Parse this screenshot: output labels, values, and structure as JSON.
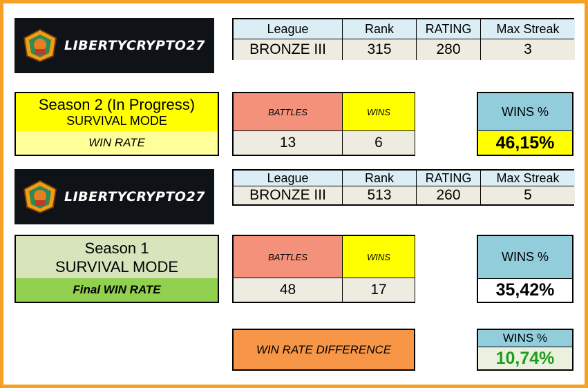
{
  "logo": {
    "text": "LIBERTYCRYPTO27"
  },
  "stat_headers": [
    "League",
    "Rank",
    "RATING",
    "Max Streak"
  ],
  "season2": {
    "title": "Season 2  (In Progress)",
    "mode": "SURVIVAL MODE",
    "rate_label": "WIN RATE",
    "stats": {
      "league": "BRONZE III",
      "rank": "315",
      "rating": "280",
      "max_streak": "3"
    },
    "battles_label": "BATTLES",
    "wins_label": "WINS",
    "battles": "13",
    "wins": "6",
    "wins_pct_label": "WINS %",
    "wins_pct": "46,15%"
  },
  "season1": {
    "title": "Season 1",
    "mode": "SURVIVAL MODE",
    "rate_label": "Final WIN RATE",
    "stats": {
      "league": "BRONZE III",
      "rank": "513",
      "rating": "260",
      "max_streak": "5"
    },
    "battles_label": "BATTLES",
    "wins_label": "WINS",
    "battles": "48",
    "wins": "17",
    "wins_pct_label": "WINS %",
    "wins_pct": "35,42%"
  },
  "difference": {
    "label": "WIN RATE DIFFERENCE",
    "wins_pct_label": "WINS %",
    "wins_pct": "10,74%"
  },
  "colors": {
    "frame": "#f5a023",
    "header_blue": "#dbeef6",
    "value_beige": "#eeece1",
    "battles_salmon": "#f4917a",
    "wins_yellow": "#ffff00",
    "pct_blue": "#92cddc",
    "diff_orange": "#f79646",
    "diff_green_text": "#1e9e1e"
  }
}
